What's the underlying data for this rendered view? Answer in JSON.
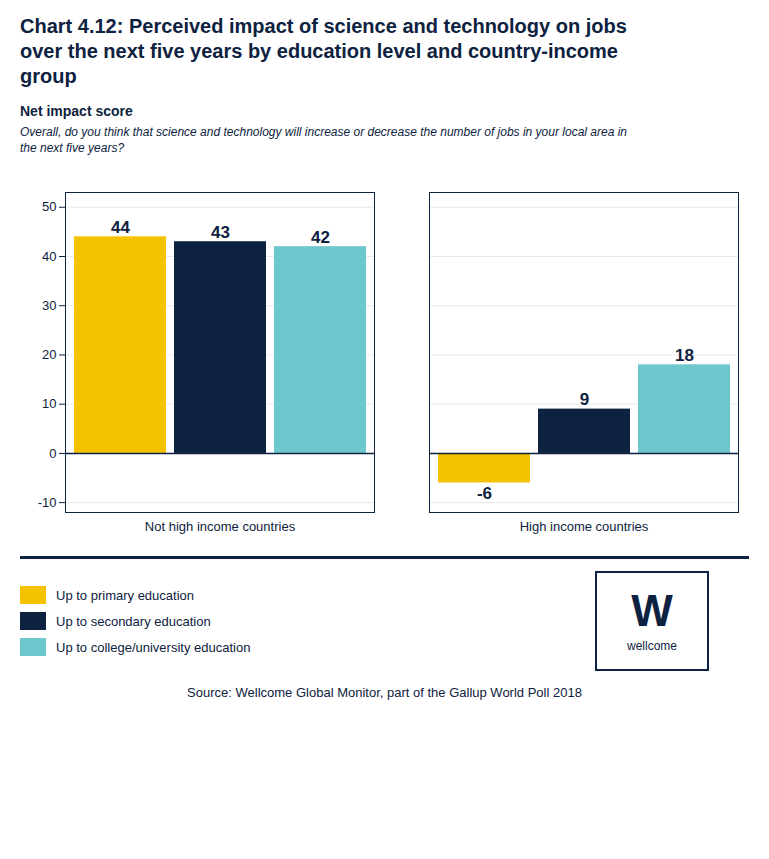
{
  "chart_data": {
    "type": "bar",
    "title": "Chart 4.12: Perceived impact of science and technology on jobs\nover the next five years by education level and country-income\ngroup",
    "subtitle": "Net impact score",
    "question": "Overall, do you think that science and technology will increase or decrease the number of jobs in your local area in\nthe next five years?",
    "categories": [
      "Not high income countries",
      "High income countries"
    ],
    "series": [
      {
        "name": "Up to primary education",
        "color": "#F5C200",
        "values": [
          44,
          -6
        ]
      },
      {
        "name": "Up to secondary education",
        "color": "#0D2240",
        "values": [
          43,
          9
        ]
      },
      {
        "name": "Up to college/university education",
        "color": "#6DC8CE",
        "values": [
          42,
          18
        ]
      }
    ],
    "ylim": [
      -12,
      53
    ],
    "yticks": [
      -10,
      0,
      10,
      20,
      30,
      40,
      50
    ],
    "grid": true,
    "data_labels": true,
    "legend": "bottom-left",
    "logo": [
      "W",
      "wellcome"
    ],
    "source": "Source: Wellcome Global Monitor, part of the Gallup World Poll 2018"
  }
}
